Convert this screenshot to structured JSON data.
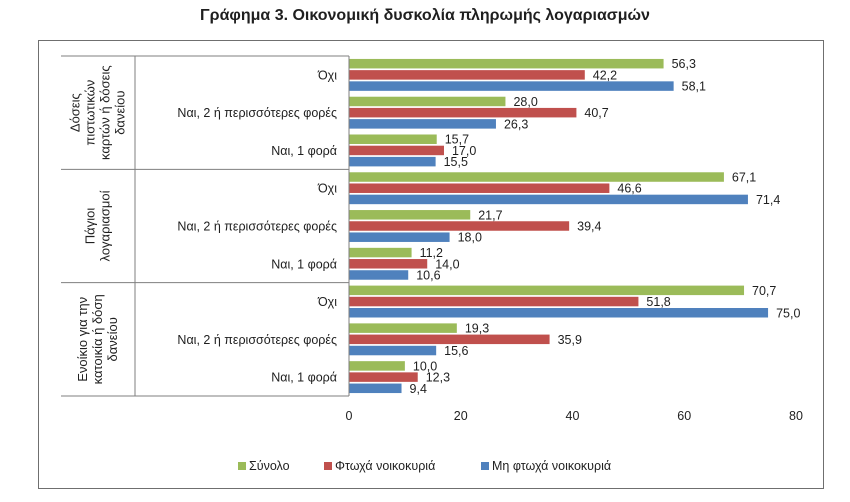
{
  "chart_data": {
    "type": "bar",
    "orientation": "horizontal",
    "title": "Γράφημα 3. Οικονομική δυσκολία πληρωμής λογαριασμών",
    "xlabel": "",
    "ylabel": "",
    "xlim": [
      0,
      80
    ],
    "xticks": [
      "0",
      "20",
      "40",
      "60",
      "80"
    ],
    "xtick_values": [
      0,
      20,
      40,
      60,
      80
    ],
    "grid": false,
    "legend_position": "bottom",
    "groups": [
      {
        "label": "Δόσεις πιστωτικών καρτών ή δόσεις δανείου",
        "label_lines": [
          "Δόσεις",
          "πιστωτικών",
          "καρτών ή δόσεις",
          "δανείου"
        ],
        "categories": [
          "Όχι",
          "Ναι, 2 ή περισσότερες φορές",
          "Ναι, 1 φορά"
        ]
      },
      {
        "label": "Πάγιοι λογαριασμοί",
        "label_lines": [
          "Πάγιοι",
          "λογαριασμοί"
        ],
        "categories": [
          "Όχι",
          "Ναι, 2 ή περισσότερες φορές",
          "Ναι, 1 φορά"
        ]
      },
      {
        "label": "Ενοίκιο για την κατοικία ή δόση δανείου",
        "label_lines": [
          "Ενοίκιο για την",
          "κατοικία ή δόση",
          "δανείου"
        ],
        "categories": [
          "Όχι",
          "Ναι, 2 ή περισσότερες φορές",
          "Ναι, 1 φορά"
        ]
      }
    ],
    "series": [
      {
        "name": "Σύνολο",
        "color": "#9BBB59",
        "values": [
          56.3,
          28.0,
          15.7,
          67.1,
          21.7,
          11.2,
          70.7,
          19.3,
          10.0
        ],
        "labels": [
          "56,3",
          "28,0",
          "15,7",
          "67,1",
          "21,7",
          "11,2",
          "70,7",
          "19,3",
          "10,0"
        ]
      },
      {
        "name": "Φτωχά νοικοκυριά",
        "color": "#C0504D",
        "values": [
          42.2,
          40.7,
          17.0,
          46.6,
          39.4,
          14.0,
          51.8,
          35.9,
          12.3
        ],
        "labels": [
          "42,2",
          "40,7",
          "17,0",
          "46,6",
          "39,4",
          "14,0",
          "51,8",
          "35,9",
          "12,3"
        ]
      },
      {
        "name": "Μη φτωχά νοικοκυριά",
        "color": "#4F81BD",
        "values": [
          58.1,
          26.3,
          15.5,
          71.4,
          18.0,
          10.6,
          75.0,
          15.6,
          9.4
        ],
        "labels": [
          "58,1",
          "26,3",
          "15,5",
          "71,4",
          "18,0",
          "10,6",
          "75,0",
          "15,6",
          "9,4"
        ]
      }
    ]
  }
}
